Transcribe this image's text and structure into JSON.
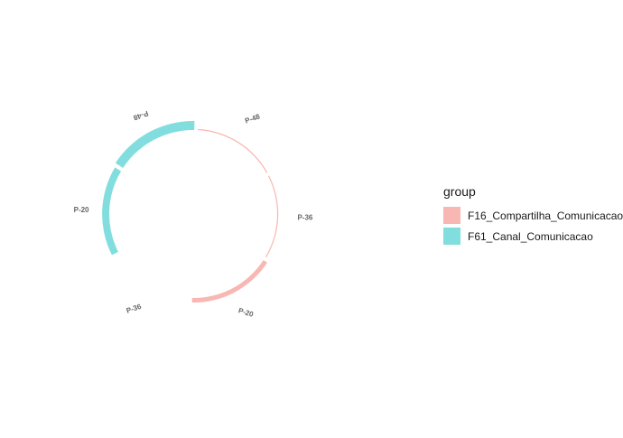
{
  "chart_data": {
    "type": "circular-bar",
    "legend": {
      "title": "group",
      "position": "right",
      "items": [
        {
          "label": "F16_Compartilha_Comunicacao",
          "color": "#F8B7B2"
        },
        {
          "label": "F61_Canal_Comunicacao",
          "color": "#82DEDE"
        }
      ]
    },
    "segments": [
      {
        "group": "F16_Compartilha_Comunicacao",
        "label": "P-48",
        "value": 1.2
      },
      {
        "group": "F16_Compartilha_Comunicacao",
        "label": "P-36",
        "value": 1.0
      },
      {
        "group": "F16_Compartilha_Comunicacao",
        "label": "P-20",
        "value": 4.8
      },
      {
        "group": "F61_Canal_Comunicacao",
        "label": "P-36",
        "value": 0
      },
      {
        "group": "F61_Canal_Comunicacao",
        "label": "P-20",
        "value": 7.5
      },
      {
        "group": "F61_Canal_Comunicacao",
        "label": "P-48",
        "value": 9.5
      }
    ]
  }
}
